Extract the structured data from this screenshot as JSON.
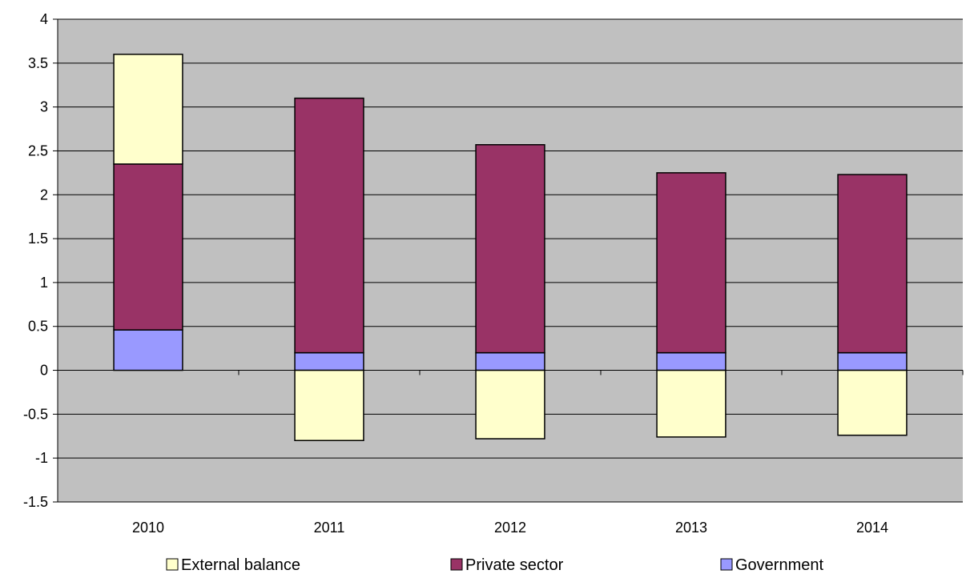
{
  "chart_data": {
    "type": "bar",
    "stacked": true,
    "categories": [
      "2010",
      "2011",
      "2012",
      "2013",
      "2014"
    ],
    "series": [
      {
        "name": "Government",
        "values": [
          0.46,
          0.2,
          0.2,
          0.2,
          0.2
        ],
        "color": "#9999FF"
      },
      {
        "name": "Private sector",
        "values": [
          1.89,
          2.9,
          2.37,
          2.05,
          2.03
        ],
        "color": "#993366"
      },
      {
        "name": "External balance",
        "values": [
          1.25,
          -0.8,
          -0.78,
          -0.76,
          -0.74
        ],
        "color": "#FFFFCC"
      }
    ],
    "ylim": [
      -1.5,
      4
    ],
    "yticks": [
      "4",
      "3.5",
      "3",
      "2.5",
      "2",
      "1.5",
      "1",
      "0.5",
      "0",
      "-0.5",
      "-1",
      "-1.5"
    ],
    "ytick_values": [
      4,
      3.5,
      3,
      2.5,
      2,
      1.5,
      1,
      0.5,
      0,
      -0.5,
      -1,
      -1.5
    ],
    "grid": true,
    "plot_background": "#C0C0C0",
    "legend_position": "bottom",
    "legend": [
      "External balance",
      "Private sector",
      "Government"
    ],
    "title": "",
    "xlabel": "",
    "ylabel": ""
  }
}
